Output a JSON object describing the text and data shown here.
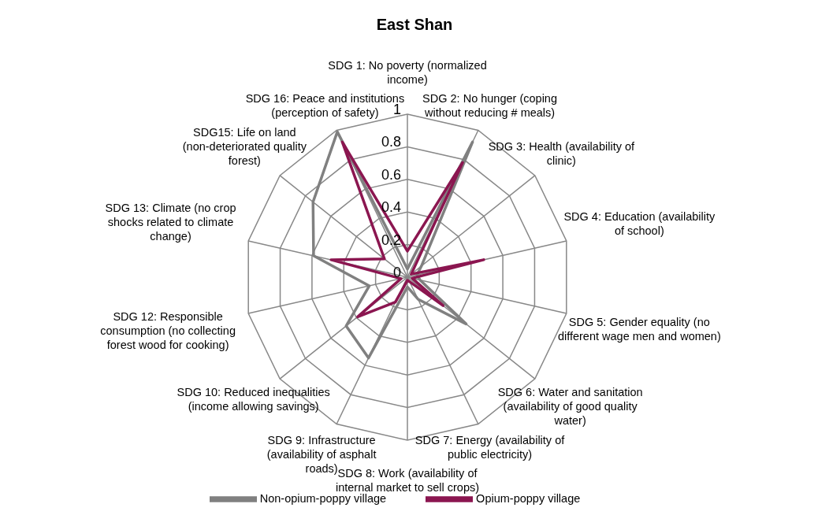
{
  "chart_data": {
    "type": "radar",
    "title": "East Shan",
    "categories": [
      "SDG 1: No poverty (normalized income)",
      "SDG 2: No hunger (coping without reducing # meals)",
      "SDG 3: Health (availability of clinic)",
      "SDG 4: Education (availability of school)",
      "SDG 5: Gender equality (no different wage men and women)",
      "SDG 6: Water and sanitation (availability of good quality water)",
      "SDG 7: Energy (availability of public electricity)",
      "SDG 8: Work (availability of internal market to sell crops)",
      "SDG 9: Infrastructure (availability of asphalt roads)",
      "SDG 10: Reduced inequalities (income allowing savings)",
      "SDG 12: Responsible consumption (no collecting forest wood for cooking)",
      "SDG 13: Climate (no crop shocks related to climate change)",
      "SDG15: Life on land (non-deteriorated quality forest)",
      "SDG 16: Peace and institutions (perception of safety)"
    ],
    "series": [
      {
        "name": "Non-opium-poppy village",
        "color": "#808080",
        "values": [
          0.05,
          0.92,
          0.11,
          0.06,
          0.08,
          0.46,
          0.15,
          0.06,
          0.55,
          0.48,
          0.24,
          0.59,
          0.74,
          0.99
        ]
      },
      {
        "name": "Opium-poppy village",
        "color": "#8b1650",
        "values": [
          0.16,
          0.78,
          0.03,
          0.48,
          0.03,
          0.28,
          0.03,
          0.02,
          0.17,
          0.39,
          0.04,
          0.48,
          0.18,
          0.92
        ]
      }
    ],
    "ylim": [
      0,
      1
    ],
    "yticks": [
      0,
      0.2,
      0.4,
      0.6,
      0.8,
      1
    ],
    "grid": true,
    "legend": "bottom",
    "marker": "none"
  }
}
